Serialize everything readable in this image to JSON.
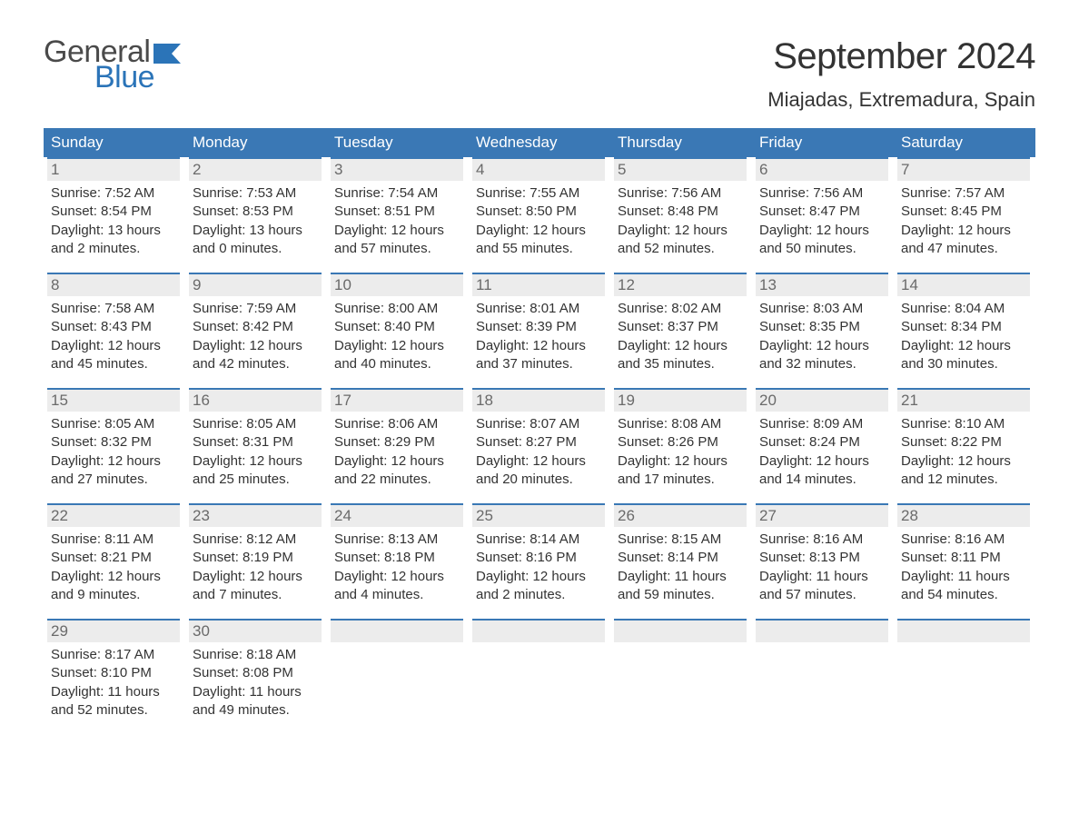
{
  "logo": {
    "word1": "General",
    "word2": "Blue"
  },
  "title": "September 2024",
  "location": "Miajadas, Extremadura, Spain",
  "colors": {
    "header_bg": "#3a78b5",
    "header_text": "#ffffff",
    "daynum_bg": "#ececec",
    "daynum_border": "#3a78b5",
    "daynum_text": "#6a6a6a",
    "body_text": "#333333",
    "logo_gray": "#4a4a4a",
    "logo_blue": "#2b74b8",
    "page_bg": "#ffffff"
  },
  "typography": {
    "title_fontsize": 40,
    "location_fontsize": 22,
    "weekday_fontsize": 17,
    "daynum_fontsize": 17,
    "body_fontsize": 15
  },
  "weekdays": [
    "Sunday",
    "Monday",
    "Tuesday",
    "Wednesday",
    "Thursday",
    "Friday",
    "Saturday"
  ],
  "weeks": [
    [
      {
        "n": "1",
        "sunrise": "Sunrise: 7:52 AM",
        "sunset": "Sunset: 8:54 PM",
        "d1": "Daylight: 13 hours",
        "d2": "and 2 minutes."
      },
      {
        "n": "2",
        "sunrise": "Sunrise: 7:53 AM",
        "sunset": "Sunset: 8:53 PM",
        "d1": "Daylight: 13 hours",
        "d2": "and 0 minutes."
      },
      {
        "n": "3",
        "sunrise": "Sunrise: 7:54 AM",
        "sunset": "Sunset: 8:51 PM",
        "d1": "Daylight: 12 hours",
        "d2": "and 57 minutes."
      },
      {
        "n": "4",
        "sunrise": "Sunrise: 7:55 AM",
        "sunset": "Sunset: 8:50 PM",
        "d1": "Daylight: 12 hours",
        "d2": "and 55 minutes."
      },
      {
        "n": "5",
        "sunrise": "Sunrise: 7:56 AM",
        "sunset": "Sunset: 8:48 PM",
        "d1": "Daylight: 12 hours",
        "d2": "and 52 minutes."
      },
      {
        "n": "6",
        "sunrise": "Sunrise: 7:56 AM",
        "sunset": "Sunset: 8:47 PM",
        "d1": "Daylight: 12 hours",
        "d2": "and 50 minutes."
      },
      {
        "n": "7",
        "sunrise": "Sunrise: 7:57 AM",
        "sunset": "Sunset: 8:45 PM",
        "d1": "Daylight: 12 hours",
        "d2": "and 47 minutes."
      }
    ],
    [
      {
        "n": "8",
        "sunrise": "Sunrise: 7:58 AM",
        "sunset": "Sunset: 8:43 PM",
        "d1": "Daylight: 12 hours",
        "d2": "and 45 minutes."
      },
      {
        "n": "9",
        "sunrise": "Sunrise: 7:59 AM",
        "sunset": "Sunset: 8:42 PM",
        "d1": "Daylight: 12 hours",
        "d2": "and 42 minutes."
      },
      {
        "n": "10",
        "sunrise": "Sunrise: 8:00 AM",
        "sunset": "Sunset: 8:40 PM",
        "d1": "Daylight: 12 hours",
        "d2": "and 40 minutes."
      },
      {
        "n": "11",
        "sunrise": "Sunrise: 8:01 AM",
        "sunset": "Sunset: 8:39 PM",
        "d1": "Daylight: 12 hours",
        "d2": "and 37 minutes."
      },
      {
        "n": "12",
        "sunrise": "Sunrise: 8:02 AM",
        "sunset": "Sunset: 8:37 PM",
        "d1": "Daylight: 12 hours",
        "d2": "and 35 minutes."
      },
      {
        "n": "13",
        "sunrise": "Sunrise: 8:03 AM",
        "sunset": "Sunset: 8:35 PM",
        "d1": "Daylight: 12 hours",
        "d2": "and 32 minutes."
      },
      {
        "n": "14",
        "sunrise": "Sunrise: 8:04 AM",
        "sunset": "Sunset: 8:34 PM",
        "d1": "Daylight: 12 hours",
        "d2": "and 30 minutes."
      }
    ],
    [
      {
        "n": "15",
        "sunrise": "Sunrise: 8:05 AM",
        "sunset": "Sunset: 8:32 PM",
        "d1": "Daylight: 12 hours",
        "d2": "and 27 minutes."
      },
      {
        "n": "16",
        "sunrise": "Sunrise: 8:05 AM",
        "sunset": "Sunset: 8:31 PM",
        "d1": "Daylight: 12 hours",
        "d2": "and 25 minutes."
      },
      {
        "n": "17",
        "sunrise": "Sunrise: 8:06 AM",
        "sunset": "Sunset: 8:29 PM",
        "d1": "Daylight: 12 hours",
        "d2": "and 22 minutes."
      },
      {
        "n": "18",
        "sunrise": "Sunrise: 8:07 AM",
        "sunset": "Sunset: 8:27 PM",
        "d1": "Daylight: 12 hours",
        "d2": "and 20 minutes."
      },
      {
        "n": "19",
        "sunrise": "Sunrise: 8:08 AM",
        "sunset": "Sunset: 8:26 PM",
        "d1": "Daylight: 12 hours",
        "d2": "and 17 minutes."
      },
      {
        "n": "20",
        "sunrise": "Sunrise: 8:09 AM",
        "sunset": "Sunset: 8:24 PM",
        "d1": "Daylight: 12 hours",
        "d2": "and 14 minutes."
      },
      {
        "n": "21",
        "sunrise": "Sunrise: 8:10 AM",
        "sunset": "Sunset: 8:22 PM",
        "d1": "Daylight: 12 hours",
        "d2": "and 12 minutes."
      }
    ],
    [
      {
        "n": "22",
        "sunrise": "Sunrise: 8:11 AM",
        "sunset": "Sunset: 8:21 PM",
        "d1": "Daylight: 12 hours",
        "d2": "and 9 minutes."
      },
      {
        "n": "23",
        "sunrise": "Sunrise: 8:12 AM",
        "sunset": "Sunset: 8:19 PM",
        "d1": "Daylight: 12 hours",
        "d2": "and 7 minutes."
      },
      {
        "n": "24",
        "sunrise": "Sunrise: 8:13 AM",
        "sunset": "Sunset: 8:18 PM",
        "d1": "Daylight: 12 hours",
        "d2": "and 4 minutes."
      },
      {
        "n": "25",
        "sunrise": "Sunrise: 8:14 AM",
        "sunset": "Sunset: 8:16 PM",
        "d1": "Daylight: 12 hours",
        "d2": "and 2 minutes."
      },
      {
        "n": "26",
        "sunrise": "Sunrise: 8:15 AM",
        "sunset": "Sunset: 8:14 PM",
        "d1": "Daylight: 11 hours",
        "d2": "and 59 minutes."
      },
      {
        "n": "27",
        "sunrise": "Sunrise: 8:16 AM",
        "sunset": "Sunset: 8:13 PM",
        "d1": "Daylight: 11 hours",
        "d2": "and 57 minutes."
      },
      {
        "n": "28",
        "sunrise": "Sunrise: 8:16 AM",
        "sunset": "Sunset: 8:11 PM",
        "d1": "Daylight: 11 hours",
        "d2": "and 54 minutes."
      }
    ],
    [
      {
        "n": "29",
        "sunrise": "Sunrise: 8:17 AM",
        "sunset": "Sunset: 8:10 PM",
        "d1": "Daylight: 11 hours",
        "d2": "and 52 minutes."
      },
      {
        "n": "30",
        "sunrise": "Sunrise: 8:18 AM",
        "sunset": "Sunset: 8:08 PM",
        "d1": "Daylight: 11 hours",
        "d2": "and 49 minutes."
      },
      {
        "empty": true
      },
      {
        "empty": true
      },
      {
        "empty": true
      },
      {
        "empty": true
      },
      {
        "empty": true
      }
    ]
  ]
}
